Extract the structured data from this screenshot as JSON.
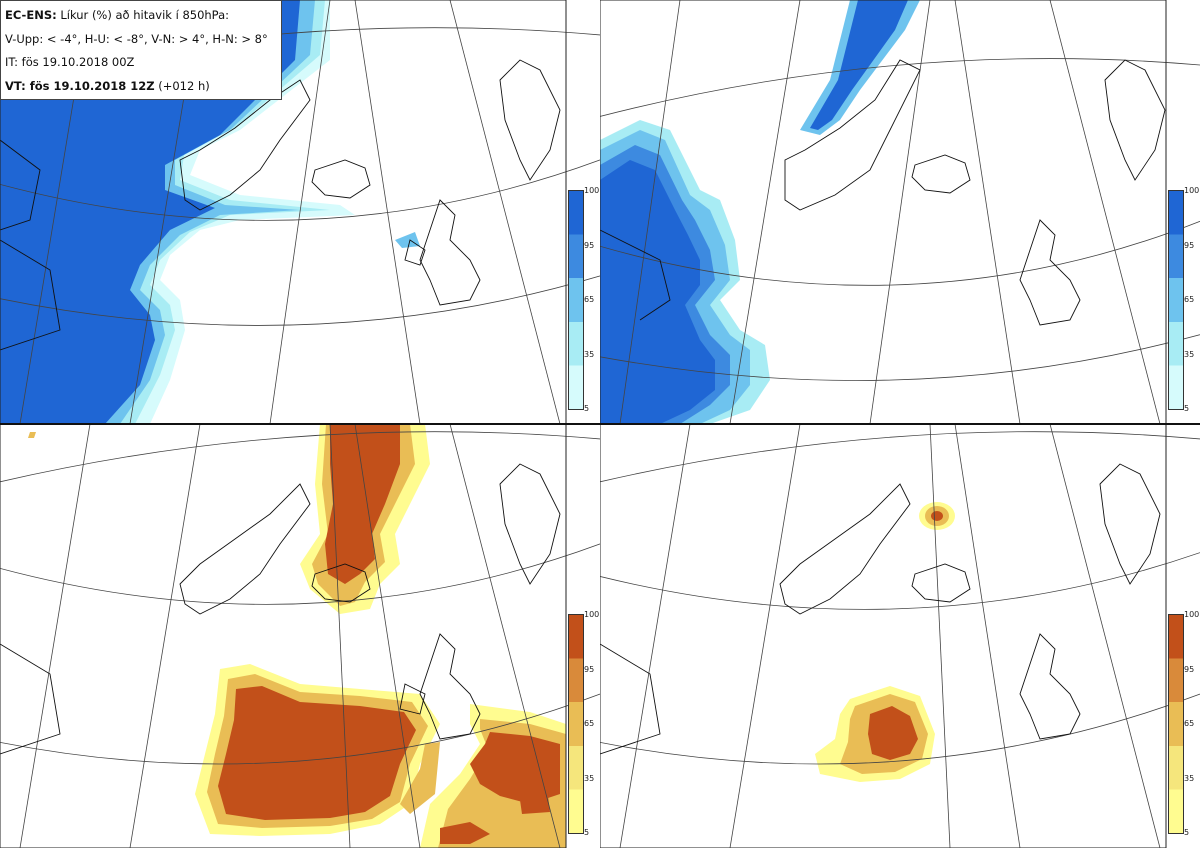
{
  "header": {
    "title_bold": "EC-ENS:",
    "title_rest": " Líkur (%) að hitavik í 850hPa:",
    "thresholds": "V-Upp: < -4°, H-U: < -8°, V-N: > 4°, H-N: > 8°",
    "issue_time": "IT: fös 19.10.2018 00Z",
    "valid_bold": "VT: fös 19.10.2018 12Z",
    "valid_rest": " (+012 h)"
  },
  "colorbar": {
    "ticks": [
      "100",
      "95",
      "65",
      "35",
      "5"
    ],
    "cold_colors": [
      "#1f66d4",
      "#3d8ae0",
      "#6ec3ee",
      "#a8ecf4",
      "#d6fbfc"
    ],
    "warm_colors": [
      "#c2501a",
      "#d98a3a",
      "#e9bd55",
      "#f5e67c",
      "#fffc90"
    ]
  },
  "panels": [
    {
      "name": "V-Upp",
      "theme": "cold"
    },
    {
      "name": "H-U",
      "theme": "cold"
    },
    {
      "name": "V-N",
      "theme": "warm"
    },
    {
      "name": "H-N",
      "theme": "warm"
    }
  ]
}
